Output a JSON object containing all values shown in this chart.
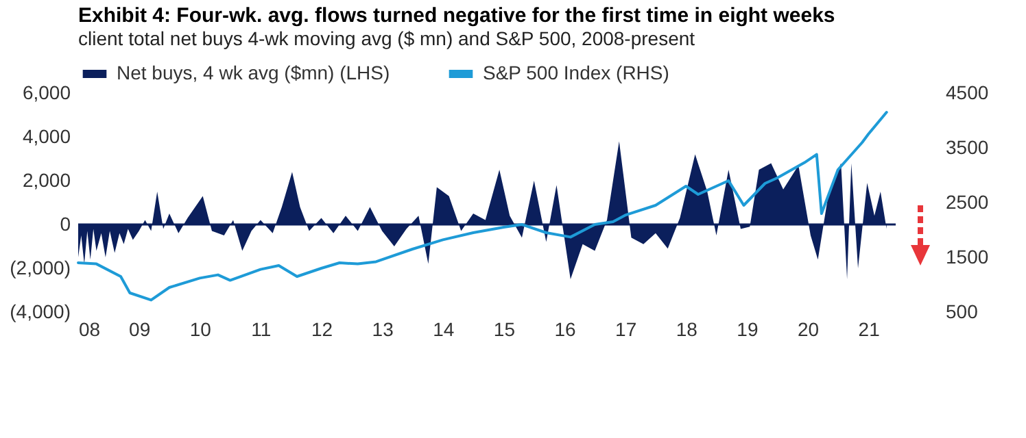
{
  "chart_data": {
    "type": "line",
    "title": "Exhibit 4: Four-wk. avg. flows turned negative for the first time in eight weeks",
    "subtitle": "client total net buys 4-wk moving avg ($ mn) and S&P 500, 2008-present",
    "xlim": [
      2008,
      2021.45
    ],
    "xticks": [
      {
        "value": 2008,
        "label": "08"
      },
      {
        "value": 2009,
        "label": "09"
      },
      {
        "value": 2010,
        "label": "10"
      },
      {
        "value": 2011,
        "label": "11"
      },
      {
        "value": 2012,
        "label": "12"
      },
      {
        "value": 2013,
        "label": "13"
      },
      {
        "value": 2014,
        "label": "14"
      },
      {
        "value": 2015,
        "label": "15"
      },
      {
        "value": 2016,
        "label": "16"
      },
      {
        "value": 2017,
        "label": "17"
      },
      {
        "value": 2018,
        "label": "18"
      },
      {
        "value": 2019,
        "label": "19"
      },
      {
        "value": 2020,
        "label": "20"
      },
      {
        "value": 2021,
        "label": "21"
      }
    ],
    "ylim": [
      -4000,
      6000
    ],
    "yticks": [
      {
        "value": -4000,
        "label": "(4,000)"
      },
      {
        "value": -2000,
        "label": "(2,000)"
      },
      {
        "value": 0,
        "label": "0"
      },
      {
        "value": 2000,
        "label": "2,000"
      },
      {
        "value": 4000,
        "label": "4,000"
      },
      {
        "value": 6000,
        "label": "6,000"
      }
    ],
    "y2lim": [
      500,
      4500
    ],
    "y2ticks": [
      500,
      1500,
      2500,
      3500,
      4500
    ],
    "legend": "top",
    "series": [
      {
        "name": "Net buys, 4 wk avg ($mn) (LHS)",
        "type": "area",
        "color": "#0b1f5c",
        "x": [
          2008,
          2008.05,
          2008.1,
          2008.15,
          2008.2,
          2008.25,
          2008.3,
          2008.38,
          2008.45,
          2008.52,
          2008.6,
          2008.68,
          2008.75,
          2008.82,
          2008.9,
          2009,
          2009.1,
          2009.2,
          2009.3,
          2009.4,
          2009.5,
          2009.65,
          2009.8,
          2010.05,
          2010.2,
          2010.4,
          2010.55,
          2010.7,
          2010.85,
          2011,
          2011.2,
          2011.35,
          2011.52,
          2011.65,
          2011.8,
          2012,
          2012.2,
          2012.4,
          2012.6,
          2012.8,
          2013,
          2013.2,
          2013.4,
          2013.6,
          2013.76,
          2013.9,
          2014.1,
          2014.3,
          2014.5,
          2014.7,
          2014.93,
          2015.1,
          2015.3,
          2015.5,
          2015.7,
          2015.87,
          2016.1,
          2016.3,
          2016.5,
          2016.7,
          2016.9,
          2017.1,
          2017.3,
          2017.5,
          2017.7,
          2017.9,
          2018.15,
          2018.35,
          2018.5,
          2018.7,
          2018.9,
          2019.05,
          2019.2,
          2019.4,
          2019.6,
          2019.85,
          2020.05,
          2020.17,
          2020.35,
          2020.55,
          2020.65,
          2020.72,
          2020.83,
          2020.98,
          2021.1,
          2021.2,
          2021.3
        ],
        "values": [
          -1500,
          -500,
          -1800,
          -300,
          -1600,
          -200,
          -1200,
          -400,
          -1500,
          -300,
          -1300,
          -400,
          -900,
          -200,
          -700,
          -300,
          200,
          -300,
          1500,
          -200,
          500,
          -400,
          300,
          1300,
          -300,
          -500,
          200,
          -1200,
          -300,
          200,
          -400,
          800,
          2400,
          800,
          -300,
          300,
          -400,
          400,
          -300,
          800,
          -300,
          -1000,
          -200,
          400,
          -1800,
          1700,
          1300,
          -300,
          500,
          200,
          2500,
          400,
          -600,
          2000,
          -800,
          1800,
          -2500,
          -900,
          -1200,
          200,
          3800,
          -600,
          -900,
          -400,
          -1100,
          300,
          3200,
          1500,
          -500,
          2500,
          -200,
          -100,
          2500,
          2800,
          1600,
          2700,
          -500,
          -1600,
          1500,
          2800,
          -2500,
          2800,
          -2000,
          1900,
          400,
          1500,
          -200
        ]
      },
      {
        "name": "S&P 500 Index (RHS)",
        "axis": "y2",
        "color": "#1e9bd7",
        "x": [
          2008,
          2008.3,
          2008.7,
          2008.85,
          2009.2,
          2009.5,
          2010,
          2010.3,
          2010.5,
          2011,
          2011.3,
          2011.6,
          2012,
          2012.3,
          2012.6,
          2012.9,
          2013.5,
          2014,
          2014.5,
          2015,
          2015.3,
          2015.7,
          2016.1,
          2016.5,
          2016.8,
          2017,
          2017.5,
          2018,
          2018.2,
          2018.7,
          2018.95,
          2019.3,
          2019.5,
          2019.95,
          2020.15,
          2020.23,
          2020.5,
          2020.9,
          2021,
          2021.3
        ],
        "values": [
          1400,
          1380,
          1150,
          850,
          720,
          950,
          1120,
          1180,
          1080,
          1280,
          1350,
          1150,
          1300,
          1400,
          1380,
          1420,
          1650,
          1820,
          1950,
          2050,
          2100,
          1950,
          1870,
          2100,
          2150,
          2270,
          2450,
          2800,
          2650,
          2900,
          2450,
          2850,
          2950,
          3230,
          3380,
          2300,
          3100,
          3600,
          3750,
          4150
        ]
      }
    ]
  }
}
